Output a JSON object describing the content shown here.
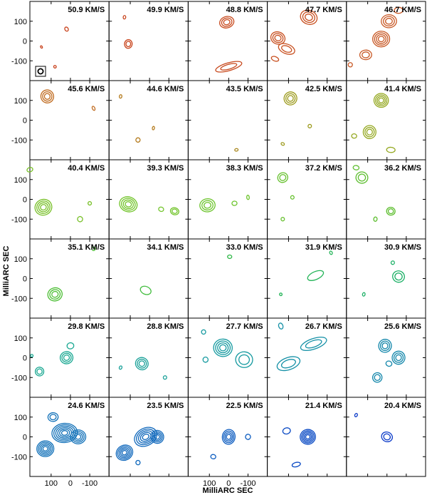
{
  "chart_data": {
    "type": "contour",
    "ylabel": "MilliARC SEC",
    "xlabel": "MilliARC SEC",
    "x_ticks": [
      "100",
      "0",
      "-100"
    ],
    "y_ticks": [
      "100",
      "0",
      "-100"
    ],
    "xlim": [
      210,
      -200
    ],
    "ylim": [
      -200,
      200
    ],
    "grid": {
      "rows": 6,
      "cols": 5
    },
    "beam_marker": true,
    "panels": [
      {
        "velocity": "50.9 KM/S",
        "color": "#c8401a",
        "sources": [
          {
            "x": 20,
            "y": 60,
            "level": 1,
            "w": 8,
            "h": 10
          },
          {
            "x": 80,
            "y": -130,
            "level": 1,
            "w": 6,
            "h": 6
          },
          {
            "x": 150,
            "y": -30,
            "level": 1,
            "w": 4,
            "h": 6
          }
        ]
      },
      {
        "velocity": "49.9 KM/S",
        "color": "#c8441c",
        "sources": [
          {
            "x": 110,
            "y": -15,
            "level": 2,
            "w": 18,
            "h": 20
          },
          {
            "x": 130,
            "y": 120,
            "level": 1,
            "w": 6,
            "h": 8
          }
        ]
      },
      {
        "velocity": "48.8 KM/S",
        "color": "#c84a1e",
        "sources": [
          {
            "x": 10,
            "y": 95,
            "level": 3,
            "w": 34,
            "h": 26
          },
          {
            "x": 0,
            "y": -130,
            "level": 2,
            "w": 64,
            "h": 18
          }
        ]
      },
      {
        "velocity": "47.7 KM/S",
        "color": "#c85020",
        "sources": [
          {
            "x": 155,
            "y": 15,
            "level": 3,
            "w": 34,
            "h": 28
          },
          {
            "x": -5,
            "y": 120,
            "level": 3,
            "w": 40,
            "h": 32
          },
          {
            "x": 110,
            "y": -40,
            "level": 2,
            "w": 40,
            "h": 22
          },
          {
            "x": 170,
            "y": -90,
            "level": 1,
            "w": 18,
            "h": 10
          }
        ]
      },
      {
        "velocity": "46.7 KM/S",
        "color": "#c85824",
        "sources": [
          {
            "x": 30,
            "y": 10,
            "level": 4,
            "w": 40,
            "h": 36
          },
          {
            "x": -10,
            "y": 100,
            "level": 3,
            "w": 36,
            "h": 30
          },
          {
            "x": 110,
            "y": -70,
            "level": 2,
            "w": 28,
            "h": 22
          },
          {
            "x": 190,
            "y": -120,
            "level": 1,
            "w": 10,
            "h": 10
          },
          {
            "x": -60,
            "y": 155,
            "level": 1,
            "w": 20,
            "h": 14
          }
        ]
      },
      {
        "velocity": "45.6 KM/S",
        "color": "#c06c20",
        "sources": [
          {
            "x": 120,
            "y": 120,
            "level": 3,
            "w": 30,
            "h": 30
          },
          {
            "x": -120,
            "y": 60,
            "level": 1,
            "w": 6,
            "h": 10
          }
        ]
      },
      {
        "velocity": "44.6 KM/S",
        "color": "#b47a1c",
        "sources": [
          {
            "x": 60,
            "y": -100,
            "level": 1,
            "w": 10,
            "h": 10
          },
          {
            "x": 150,
            "y": 120,
            "level": 1,
            "w": 6,
            "h": 8
          },
          {
            "x": -20,
            "y": -40,
            "level": 1,
            "w": 5,
            "h": 8
          }
        ]
      },
      {
        "velocity": "43.5 KM/S",
        "color": "#a8861c",
        "sources": [
          {
            "x": -40,
            "y": -150,
            "level": 1,
            "w": 8,
            "h": 6
          }
        ]
      },
      {
        "velocity": "42.5 KM/S",
        "color": "#9c9a1c",
        "sources": [
          {
            "x": 90,
            "y": 110,
            "level": 3,
            "w": 30,
            "h": 30
          },
          {
            "x": -10,
            "y": -30,
            "level": 1,
            "w": 8,
            "h": 8
          },
          {
            "x": 130,
            "y": -120,
            "level": 1,
            "w": 8,
            "h": 6
          }
        ]
      },
      {
        "velocity": "41.4 KM/S",
        "color": "#94a820",
        "sources": [
          {
            "x": 30,
            "y": 100,
            "level": 4,
            "w": 34,
            "h": 32
          },
          {
            "x": 90,
            "y": -60,
            "level": 3,
            "w": 30,
            "h": 30
          },
          {
            "x": -20,
            "y": -150,
            "level": 1,
            "w": 20,
            "h": 12
          },
          {
            "x": 170,
            "y": -80,
            "level": 1,
            "w": 12,
            "h": 10
          }
        ]
      },
      {
        "velocity": "40.4 KM/S",
        "color": "#78c028",
        "sources": [
          {
            "x": 140,
            "y": -40,
            "level": 4,
            "w": 40,
            "h": 36
          },
          {
            "x": -100,
            "y": -20,
            "level": 1,
            "w": 8,
            "h": 8
          },
          {
            "x": -50,
            "y": -100,
            "level": 1,
            "w": 12,
            "h": 12
          },
          {
            "x": 210,
            "y": 150,
            "level": 1,
            "w": 14,
            "h": 10
          }
        ]
      },
      {
        "velocity": "39.3 KM/S",
        "color": "#72c42a",
        "sources": [
          {
            "x": 110,
            "y": -25,
            "level": 4,
            "w": 42,
            "h": 34
          },
          {
            "x": -130,
            "y": -60,
            "level": 2,
            "w": 20,
            "h": 16
          },
          {
            "x": -60,
            "y": -50,
            "level": 1,
            "w": 12,
            "h": 10
          }
        ]
      },
      {
        "velocity": "38.3 KM/S",
        "color": "#6cc42c",
        "sources": [
          {
            "x": 110,
            "y": -30,
            "level": 3,
            "w": 36,
            "h": 30
          },
          {
            "x": -30,
            "y": -20,
            "level": 1,
            "w": 12,
            "h": 10
          },
          {
            "x": -100,
            "y": 10,
            "level": 1,
            "w": 6,
            "h": 10
          }
        ]
      },
      {
        "velocity": "37.2 KM/S",
        "color": "#66c02e",
        "sources": [
          {
            "x": 130,
            "y": 110,
            "level": 2,
            "w": 24,
            "h": 22
          },
          {
            "x": 130,
            "y": -100,
            "level": 1,
            "w": 8,
            "h": 8
          },
          {
            "x": 80,
            "y": 10,
            "level": 1,
            "w": 8,
            "h": 8
          }
        ]
      },
      {
        "velocity": "36.2 KM/S",
        "color": "#5ebe30",
        "sources": [
          {
            "x": 130,
            "y": 110,
            "level": 2,
            "w": 28,
            "h": 26
          },
          {
            "x": -20,
            "y": -60,
            "level": 2,
            "w": 20,
            "h": 18
          },
          {
            "x": 160,
            "y": 160,
            "level": 1,
            "w": 14,
            "h": 10
          },
          {
            "x": 60,
            "y": -100,
            "level": 1,
            "w": 8,
            "h": 10
          }
        ]
      },
      {
        "velocity": "35.1 KM/S",
        "color": "#4cbe34",
        "sources": [
          {
            "x": 80,
            "y": -80,
            "level": 3,
            "w": 34,
            "h": 30
          },
          {
            "x": -120,
            "y": 150,
            "level": 1,
            "w": 8,
            "h": 8
          }
        ]
      },
      {
        "velocity": "34.1 KM/S",
        "color": "#40bc3c",
        "sources": [
          {
            "x": 20,
            "y": -60,
            "level": 1,
            "w": 26,
            "h": 18
          }
        ]
      },
      {
        "velocity": "33.0 KM/S",
        "color": "#30b848",
        "sources": [
          {
            "x": -5,
            "y": 110,
            "level": 1,
            "w": 10,
            "h": 8
          }
        ]
      },
      {
        "velocity": "31.9 KM/S",
        "color": "#24b458",
        "sources": [
          {
            "x": -40,
            "y": 15,
            "level": 1,
            "w": 40,
            "h": 18
          },
          {
            "x": -120,
            "y": 130,
            "level": 1,
            "w": 6,
            "h": 8
          },
          {
            "x": 140,
            "y": -80,
            "level": 1,
            "w": 6,
            "h": 6
          }
        ]
      },
      {
        "velocity": "30.9 KM/S",
        "color": "#1cb066",
        "sources": [
          {
            "x": -60,
            "y": 10,
            "level": 2,
            "w": 28,
            "h": 26
          },
          {
            "x": 120,
            "y": -80,
            "level": 1,
            "w": 6,
            "h": 8
          },
          {
            "x": -30,
            "y": 80,
            "level": 1,
            "w": 8,
            "h": 8
          }
        ]
      },
      {
        "velocity": "29.8 KM/S",
        "color": "#1aa892",
        "sources": [
          {
            "x": 20,
            "y": 0,
            "level": 3,
            "w": 30,
            "h": 28
          },
          {
            "x": 0,
            "y": 60,
            "level": 1,
            "w": 16,
            "h": 14
          },
          {
            "x": 160,
            "y": -70,
            "level": 2,
            "w": 20,
            "h": 20
          },
          {
            "x": 200,
            "y": 10,
            "level": 1,
            "w": 6,
            "h": 6
          }
        ]
      },
      {
        "velocity": "28.8 KM/S",
        "color": "#18a098",
        "sources": [
          {
            "x": 40,
            "y": -30,
            "level": 3,
            "w": 30,
            "h": 28
          },
          {
            "x": -80,
            "y": -100,
            "level": 1,
            "w": 8,
            "h": 8
          },
          {
            "x": 150,
            "y": -50,
            "level": 1,
            "w": 6,
            "h": 8
          }
        ]
      },
      {
        "velocity": "27.7 KM/S",
        "color": "#169aa0",
        "sources": [
          {
            "x": 30,
            "y": 50,
            "level": 4,
            "w": 44,
            "h": 40
          },
          {
            "x": -80,
            "y": -10,
            "level": 2,
            "w": 40,
            "h": 36
          },
          {
            "x": 120,
            "y": -10,
            "level": 1,
            "w": 12,
            "h": 12
          },
          {
            "x": 130,
            "y": 130,
            "level": 1,
            "w": 10,
            "h": 10
          }
        ]
      },
      {
        "velocity": "26.7 KM/S",
        "color": "#1490a6",
        "sources": [
          {
            "x": -30,
            "y": 70,
            "level": 2,
            "w": 64,
            "h": 24
          },
          {
            "x": 100,
            "y": -30,
            "level": 2,
            "w": 56,
            "h": 28
          },
          {
            "x": 140,
            "y": 160,
            "level": 1,
            "w": 10,
            "h": 14
          }
        ]
      },
      {
        "velocity": "25.6 KM/S",
        "color": "#1286aa",
        "sources": [
          {
            "x": 10,
            "y": 60,
            "level": 3,
            "w": 30,
            "h": 30
          },
          {
            "x": -60,
            "y": 0,
            "level": 3,
            "w": 30,
            "h": 30
          },
          {
            "x": 50,
            "y": -100,
            "level": 2,
            "w": 22,
            "h": 22
          },
          {
            "x": -10,
            "y": -30,
            "level": 1,
            "w": 14,
            "h": 12
          }
        ]
      },
      {
        "velocity": "24.6 KM/S",
        "color": "#1070b8",
        "sources": [
          {
            "x": 30,
            "y": 20,
            "level": 6,
            "w": 60,
            "h": 44
          },
          {
            "x": 130,
            "y": -60,
            "level": 5,
            "w": 40,
            "h": 36
          },
          {
            "x": -40,
            "y": 0,
            "level": 4,
            "w": 36,
            "h": 32
          },
          {
            "x": 90,
            "y": 100,
            "level": 2,
            "w": 24,
            "h": 20
          }
        ]
      },
      {
        "velocity": "23.5 KM/S",
        "color": "#1068bc",
        "sources": [
          {
            "x": 20,
            "y": 0,
            "level": 5,
            "w": 56,
            "h": 40
          },
          {
            "x": -40,
            "y": 0,
            "level": 4,
            "w": 30,
            "h": 30
          },
          {
            "x": 130,
            "y": -80,
            "level": 5,
            "w": 40,
            "h": 34
          },
          {
            "x": 60,
            "y": -130,
            "level": 1,
            "w": 10,
            "h": 10
          }
        ]
      },
      {
        "velocity": "22.5 KM/S",
        "color": "#0c5cc0",
        "sources": [
          {
            "x": 0,
            "y": 0,
            "level": 4,
            "w": 30,
            "h": 34
          },
          {
            "x": -100,
            "y": 0,
            "level": 1,
            "w": 12,
            "h": 12
          },
          {
            "x": 80,
            "y": -100,
            "level": 1,
            "w": 12,
            "h": 10
          }
        ]
      },
      {
        "velocity": "21.4 KM/S",
        "color": "#0a4ac4",
        "sources": [
          {
            "x": 0,
            "y": 0,
            "level": 5,
            "w": 36,
            "h": 34
          },
          {
            "x": 110,
            "y": 30,
            "level": 1,
            "w": 18,
            "h": 14
          },
          {
            "x": 60,
            "y": -140,
            "level": 1,
            "w": 20,
            "h": 10
          }
        ]
      },
      {
        "velocity": "20.4 KM/S",
        "color": "#0838c8",
        "sources": [
          {
            "x": 0,
            "y": 0,
            "level": 2,
            "w": 26,
            "h": 22
          },
          {
            "x": 160,
            "y": 110,
            "level": 1,
            "w": 6,
            "h": 8
          }
        ]
      }
    ]
  }
}
